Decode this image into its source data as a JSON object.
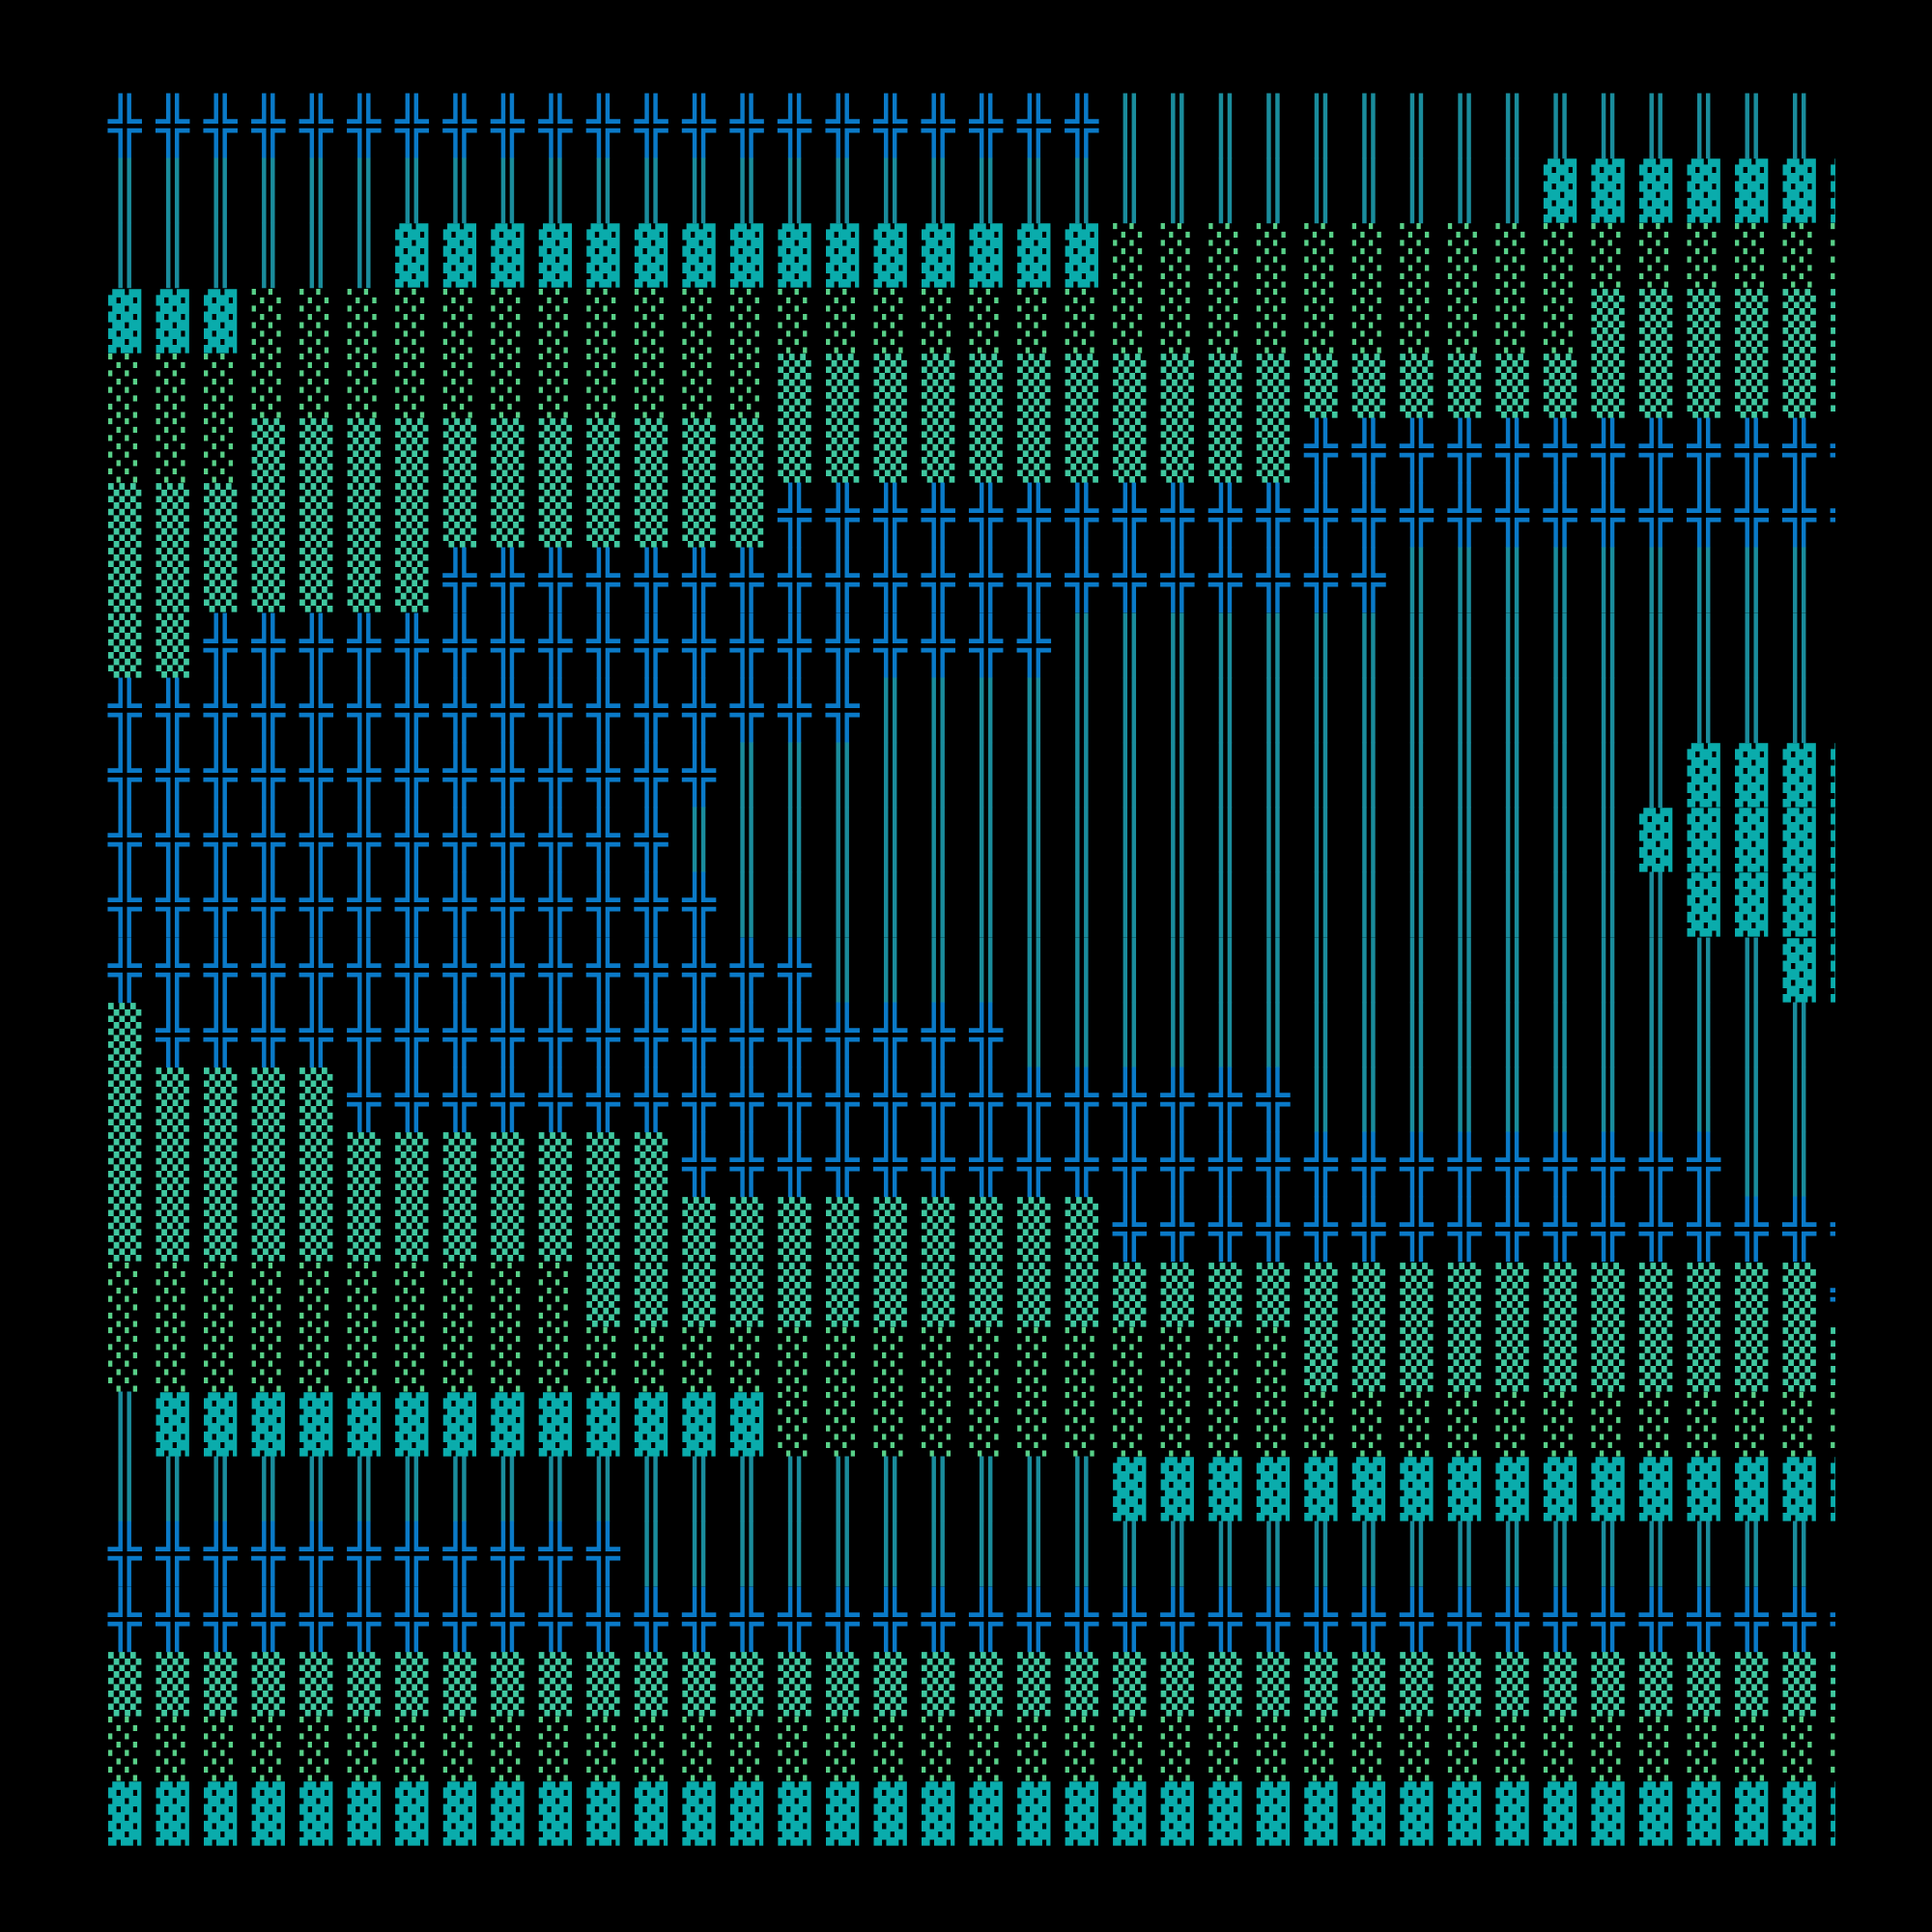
{
  "palette": {
    "╬": "#0a7ac8",
    "║": "#1a8c9c",
    "▓": "#0aacac",
    "▒": "#40c8a0",
    "░": "#58d088",
    "background": "#000000"
  },
  "rows": [
    [
      [
        "╬",
        21
      ],
      [
        "║",
        16
      ]
    ],
    [
      [
        "║",
        30
      ],
      [
        "▓",
        7
      ]
    ],
    [
      [
        "║",
        6
      ],
      [
        "▓",
        15
      ],
      [
        "░",
        16
      ]
    ],
    [
      [
        "▓",
        3
      ],
      [
        "░",
        28
      ],
      [
        "▒",
        6
      ]
    ],
    [
      [
        "░",
        14
      ],
      [
        "▒",
        23
      ]
    ],
    [
      [
        "░",
        3
      ],
      [
        "▒",
        22
      ],
      [
        "╬",
        12
      ]
    ],
    [
      [
        "▒",
        14
      ],
      [
        "╬",
        23
      ]
    ],
    [
      [
        "▒",
        7
      ],
      [
        "╬",
        20
      ],
      [
        "║",
        10
      ]
    ],
    [
      [
        "▒",
        2
      ],
      [
        "╬",
        18
      ],
      [
        "║",
        17
      ]
    ],
    [
      [
        "╬",
        16
      ],
      [
        "║",
        21
      ]
    ],
    [
      [
        "╬",
        13
      ],
      [
        "║",
        20
      ],
      [
        "▓",
        4
      ]
    ],
    [
      [
        "╬",
        12
      ],
      [
        "║",
        20
      ],
      [
        "▓",
        5
      ]
    ],
    [
      [
        "╬",
        13
      ],
      [
        "║",
        20
      ],
      [
        "▓",
        4
      ]
    ],
    [
      [
        "╬",
        15
      ],
      [
        "║",
        20
      ],
      [
        "▓",
        2
      ]
    ],
    [
      [
        "▒",
        1
      ],
      [
        "╬",
        18
      ],
      [
        "║",
        18
      ]
    ],
    [
      [
        "▒",
        5
      ],
      [
        "╬",
        20
      ],
      [
        "║",
        12
      ]
    ],
    [
      [
        "▒",
        12
      ],
      [
        "╬",
        22
      ],
      [
        "║",
        3
      ]
    ],
    [
      [
        "▒",
        21
      ],
      [
        "╬",
        16
      ]
    ],
    [
      [
        "░",
        10
      ],
      [
        "▒",
        26
      ],
      [
        "╬",
        1
      ]
    ],
    [
      [
        "░",
        25
      ],
      [
        "▒",
        12
      ]
    ],
    [
      [
        "║",
        1
      ],
      [
        "▓",
        13
      ],
      [
        "░",
        23
      ]
    ],
    [
      [
        "║",
        21
      ],
      [
        "▓",
        16
      ]
    ],
    [
      [
        "╬",
        11
      ],
      [
        "║",
        26
      ]
    ],
    [
      [
        "╬",
        37
      ]
    ],
    [
      [
        "▒",
        37
      ]
    ],
    [
      [
        "░",
        37
      ]
    ],
    [
      [
        "▓",
        37
      ]
    ]
  ]
}
